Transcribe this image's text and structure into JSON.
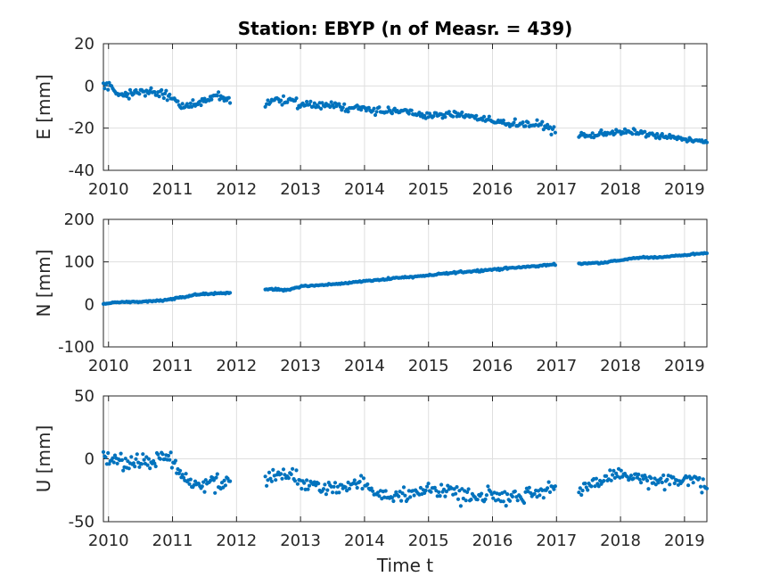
{
  "chart_data": [
    {
      "type": "scatter",
      "id": "E",
      "title": "Station: EBYP (n of Measr. = 439)",
      "xlabel": "",
      "ylabel": "E [mm]",
      "xlim": [
        2009.92,
        2019.35
      ],
      "ylim": [
        -40,
        20
      ],
      "xticks": [
        "2010",
        "2011",
        "2012",
        "2013",
        "2014",
        "2015",
        "2016",
        "2017",
        "2018",
        "2019"
      ],
      "yticks": [
        "-40",
        "-20",
        "0",
        "20"
      ],
      "grid": true,
      "color": "#0072BD",
      "segments": [
        {
          "t0": 2009.92,
          "t1": 2011.9,
          "knots": [
            [
              2009.92,
              0
            ],
            [
              2010.05,
              0
            ],
            [
              2010.15,
              -4
            ],
            [
              2010.5,
              -3
            ],
            [
              2010.8,
              -3
            ],
            [
              2011.0,
              -6
            ],
            [
              2011.15,
              -10
            ],
            [
              2011.3,
              -9
            ],
            [
              2011.5,
              -7
            ],
            [
              2011.7,
              -5
            ],
            [
              2011.9,
              -7
            ]
          ],
          "n": 110,
          "noise": 1.4
        },
        {
          "t0": 2012.45,
          "t1": 2016.98,
          "knots": [
            [
              2012.45,
              -9
            ],
            [
              2012.6,
              -6
            ],
            [
              2012.8,
              -7
            ],
            [
              2013.0,
              -9
            ],
            [
              2013.5,
              -9
            ],
            [
              2014.0,
              -11
            ],
            [
              2014.5,
              -12
            ],
            [
              2015.0,
              -14
            ],
            [
              2015.25,
              -14
            ],
            [
              2015.5,
              -13
            ],
            [
              2016.0,
              -17
            ],
            [
              2016.5,
              -18
            ],
            [
              2016.85,
              -19
            ],
            [
              2016.98,
              -22
            ]
          ],
          "n": 225,
          "noise": 1.3
        },
        {
          "t0": 2017.35,
          "t1": 2019.35,
          "knots": [
            [
              2017.35,
              -23
            ],
            [
              2017.5,
              -24
            ],
            [
              2017.8,
              -22
            ],
            [
              2018.0,
              -22
            ],
            [
              2018.3,
              -22
            ],
            [
              2018.6,
              -24
            ],
            [
              2019.0,
              -25
            ],
            [
              2019.35,
              -27
            ]
          ],
          "n": 104,
          "noise": 1.0
        }
      ]
    },
    {
      "type": "scatter",
      "id": "N",
      "title": "",
      "xlabel": "",
      "ylabel": "N [mm]",
      "xlim": [
        2009.92,
        2019.35
      ],
      "ylim": [
        -100,
        200
      ],
      "xticks": [
        "2010",
        "2011",
        "2012",
        "2013",
        "2014",
        "2015",
        "2016",
        "2017",
        "2018",
        "2019"
      ],
      "yticks": [
        "-100",
        "0",
        "100",
        "200"
      ],
      "grid": true,
      "color": "#0072BD",
      "segments": [
        {
          "t0": 2009.92,
          "t1": 2011.9,
          "knots": [
            [
              2009.92,
              0
            ],
            [
              2010.1,
              5
            ],
            [
              2010.5,
              6
            ],
            [
              2010.9,
              10
            ],
            [
              2011.2,
              18
            ],
            [
              2011.5,
              25
            ],
            [
              2011.9,
              27
            ]
          ],
          "n": 110,
          "noise": 1.5
        },
        {
          "t0": 2012.45,
          "t1": 2016.98,
          "knots": [
            [
              2012.45,
              36
            ],
            [
              2012.8,
              34
            ],
            [
              2013.0,
              42
            ],
            [
              2013.5,
              47
            ],
            [
              2014.0,
              55
            ],
            [
              2014.5,
              62
            ],
            [
              2015.0,
              68
            ],
            [
              2015.5,
              76
            ],
            [
              2016.0,
              82
            ],
            [
              2016.5,
              88
            ],
            [
              2016.98,
              94
            ]
          ],
          "n": 225,
          "noise": 1.5
        },
        {
          "t0": 2017.35,
          "t1": 2019.35,
          "knots": [
            [
              2017.35,
              96
            ],
            [
              2017.7,
              98
            ],
            [
              2018.0,
              104
            ],
            [
              2018.3,
              110
            ],
            [
              2018.6,
              111
            ],
            [
              2019.0,
              116
            ],
            [
              2019.35,
              121
            ]
          ],
          "n": 104,
          "noise": 1.2
        }
      ]
    },
    {
      "type": "scatter",
      "id": "U",
      "title": "",
      "xlabel": "Time t",
      "ylabel": "U [mm]",
      "xlim": [
        2009.92,
        2019.35
      ],
      "ylim": [
        -50,
        50
      ],
      "xticks": [
        "2010",
        "2011",
        "2012",
        "2013",
        "2014",
        "2015",
        "2016",
        "2017",
        "2018",
        "2019"
      ],
      "yticks": [
        "-50",
        "0",
        "50"
      ],
      "grid": true,
      "color": "#0072BD",
      "segments": [
        {
          "t0": 2009.92,
          "t1": 2011.9,
          "knots": [
            [
              2009.92,
              2
            ],
            [
              2010.1,
              0
            ],
            [
              2010.3,
              -5
            ],
            [
              2010.6,
              -3
            ],
            [
              2010.8,
              2
            ],
            [
              2011.0,
              -2
            ],
            [
              2011.2,
              -18
            ],
            [
              2011.4,
              -22
            ],
            [
              2011.6,
              -18
            ],
            [
              2011.9,
              -20
            ]
          ],
          "n": 110,
          "noise": 5
        },
        {
          "t0": 2012.45,
          "t1": 2016.98,
          "knots": [
            [
              2012.45,
              -15
            ],
            [
              2012.7,
              -12
            ],
            [
              2013.0,
              -15
            ],
            [
              2013.3,
              -25
            ],
            [
              2013.7,
              -22
            ],
            [
              2014.0,
              -20
            ],
            [
              2014.4,
              -30
            ],
            [
              2014.8,
              -28
            ],
            [
              2015.2,
              -23
            ],
            [
              2015.6,
              -30
            ],
            [
              2016.0,
              -28
            ],
            [
              2016.4,
              -30
            ],
            [
              2016.98,
              -22
            ]
          ],
          "n": 225,
          "noise": 4.5
        },
        {
          "t0": 2017.35,
          "t1": 2019.35,
          "knots": [
            [
              2017.35,
              -28
            ],
            [
              2017.6,
              -20
            ],
            [
              2017.9,
              -12
            ],
            [
              2018.2,
              -15
            ],
            [
              2018.6,
              -20
            ],
            [
              2019.0,
              -15
            ],
            [
              2019.35,
              -20
            ]
          ],
          "n": 104,
          "noise": 4
        }
      ]
    }
  ]
}
